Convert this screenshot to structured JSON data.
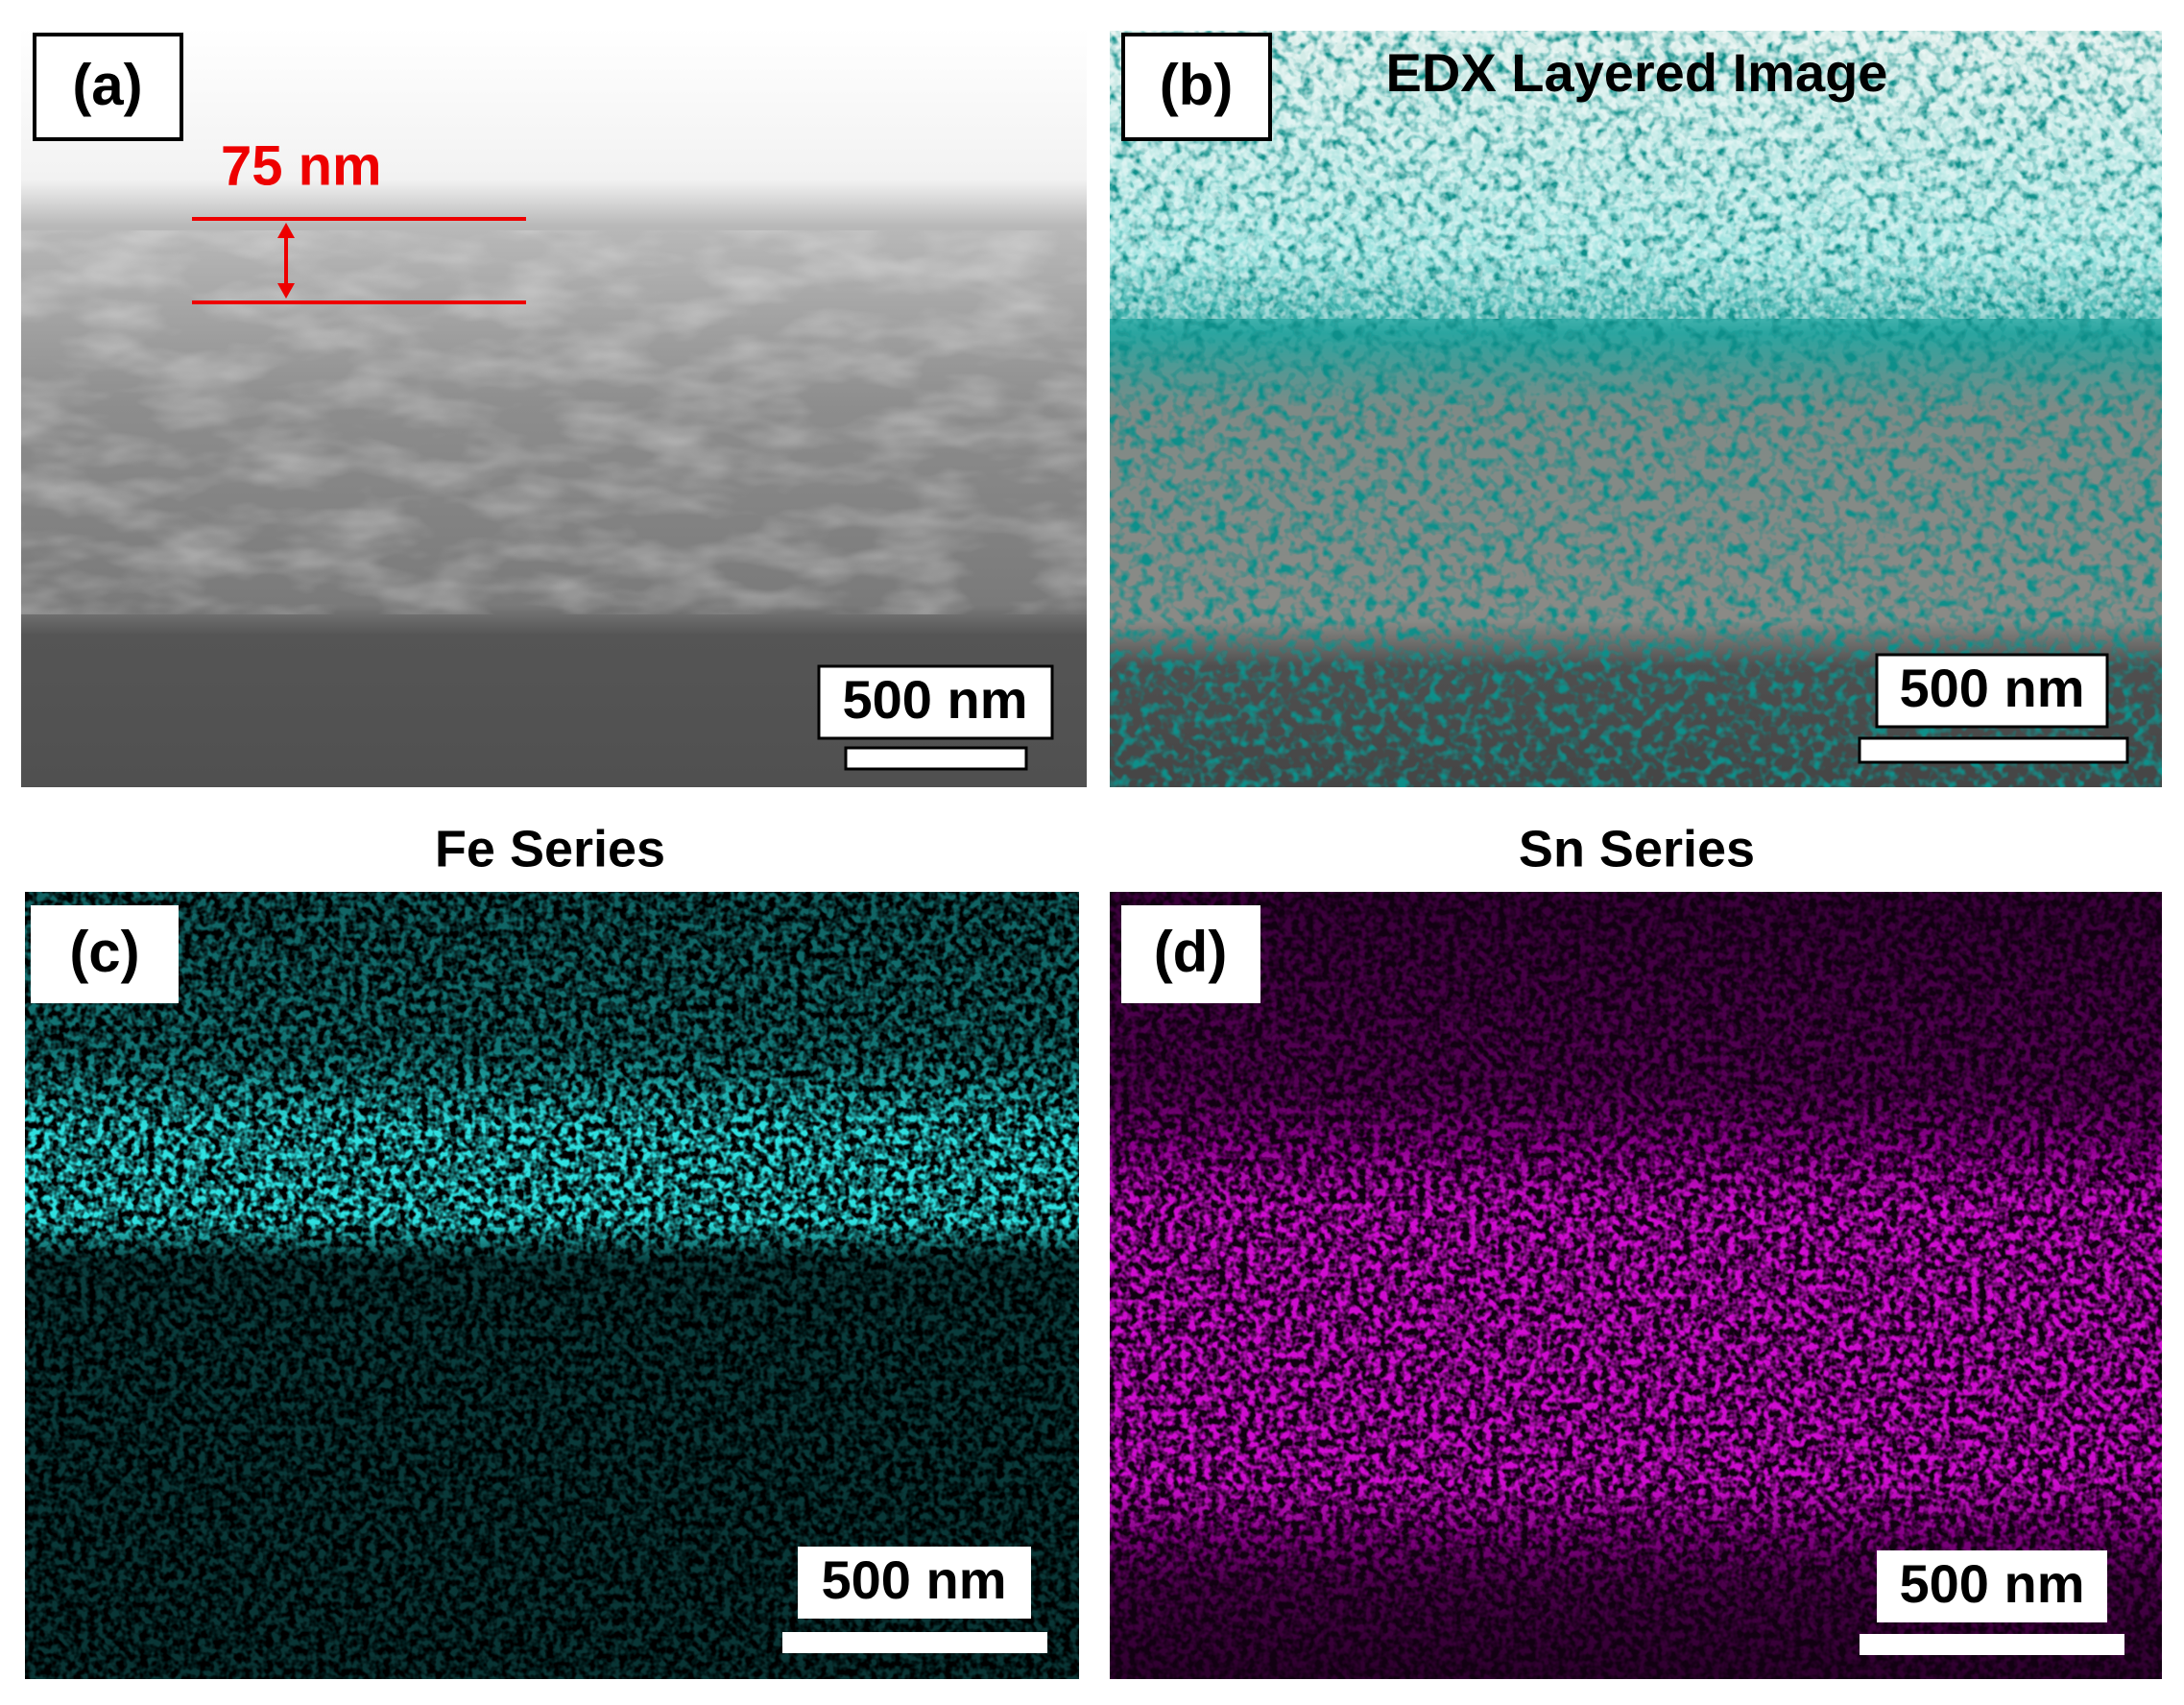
{
  "panels": [
    {
      "label": "(a)",
      "annotation": "75 nm",
      "scale_bar": "500 nm"
    },
    {
      "label": "(b)",
      "title": "EDX Layered Image",
      "scale_bar": "500 nm"
    },
    {
      "label": "(c)",
      "title": "Fe Series",
      "scale_bar": "500 nm"
    },
    {
      "label": "(d)",
      "title": "Sn Series",
      "scale_bar": "500 nm"
    }
  ]
}
